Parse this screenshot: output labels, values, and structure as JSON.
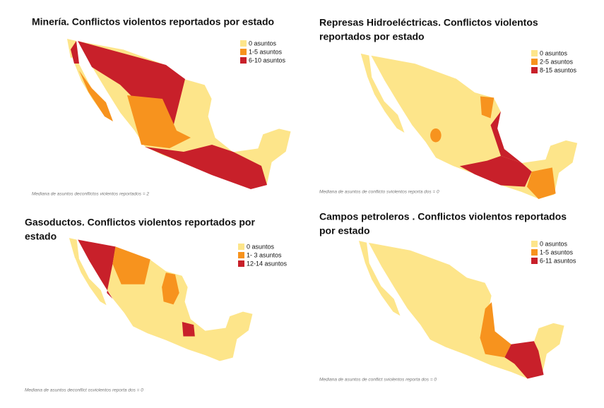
{
  "panels": [
    {
      "title": [
        "Minería. Conflictos violentos reportados por estado"
      ],
      "legend": [
        {
          "label": "0 asuntos",
          "color": "#fde58a"
        },
        {
          "label": "1-5 asuntos",
          "color": "#f7931e"
        },
        {
          "label": "6-10 asuntos",
          "color": "#c8202a"
        }
      ],
      "note": "Mediana de asuntos deconflictos violentos reportados = 2"
    },
    {
      "title": [
        "Represas Hidroeléctricas. Conflictos violentos",
        "reportados por estado"
      ],
      "legend": [
        {
          "label": "0 asuntos",
          "color": "#fde58a"
        },
        {
          "label": "2-5 asuntos",
          "color": "#f7931e"
        },
        {
          "label": "8-15 asuntos",
          "color": "#c8202a"
        }
      ],
      "note": "Mediana de asuntos de conflicto sviolentos reporta dos = 0"
    },
    {
      "title": [
        "Gasoductos. Conflictos violentos reportados por",
        "estado"
      ],
      "legend": [
        {
          "label": "0 asuntos",
          "color": "#fde58a"
        },
        {
          "label": "1- 3 asuntos",
          "color": "#f7931e"
        },
        {
          "label": "12-14 asuntos",
          "color": "#c8202a"
        }
      ],
      "note": "Mediana de asuntos deconflict osviolentos reporta dos = 0"
    },
    {
      "title": [
        "Campos petroleros . Conflictos violentos reportados",
        "por estado"
      ],
      "legend": [
        {
          "label": "0 asuntos",
          "color": "#fde58a"
        },
        {
          "label": "1-5 asuntos",
          "color": "#f7931e"
        },
        {
          "label": "6-11 asuntos",
          "color": "#c8202a"
        }
      ],
      "note": "Mediana de asuntos de conflict sviolentos reporta dos = 0"
    }
  ]
}
